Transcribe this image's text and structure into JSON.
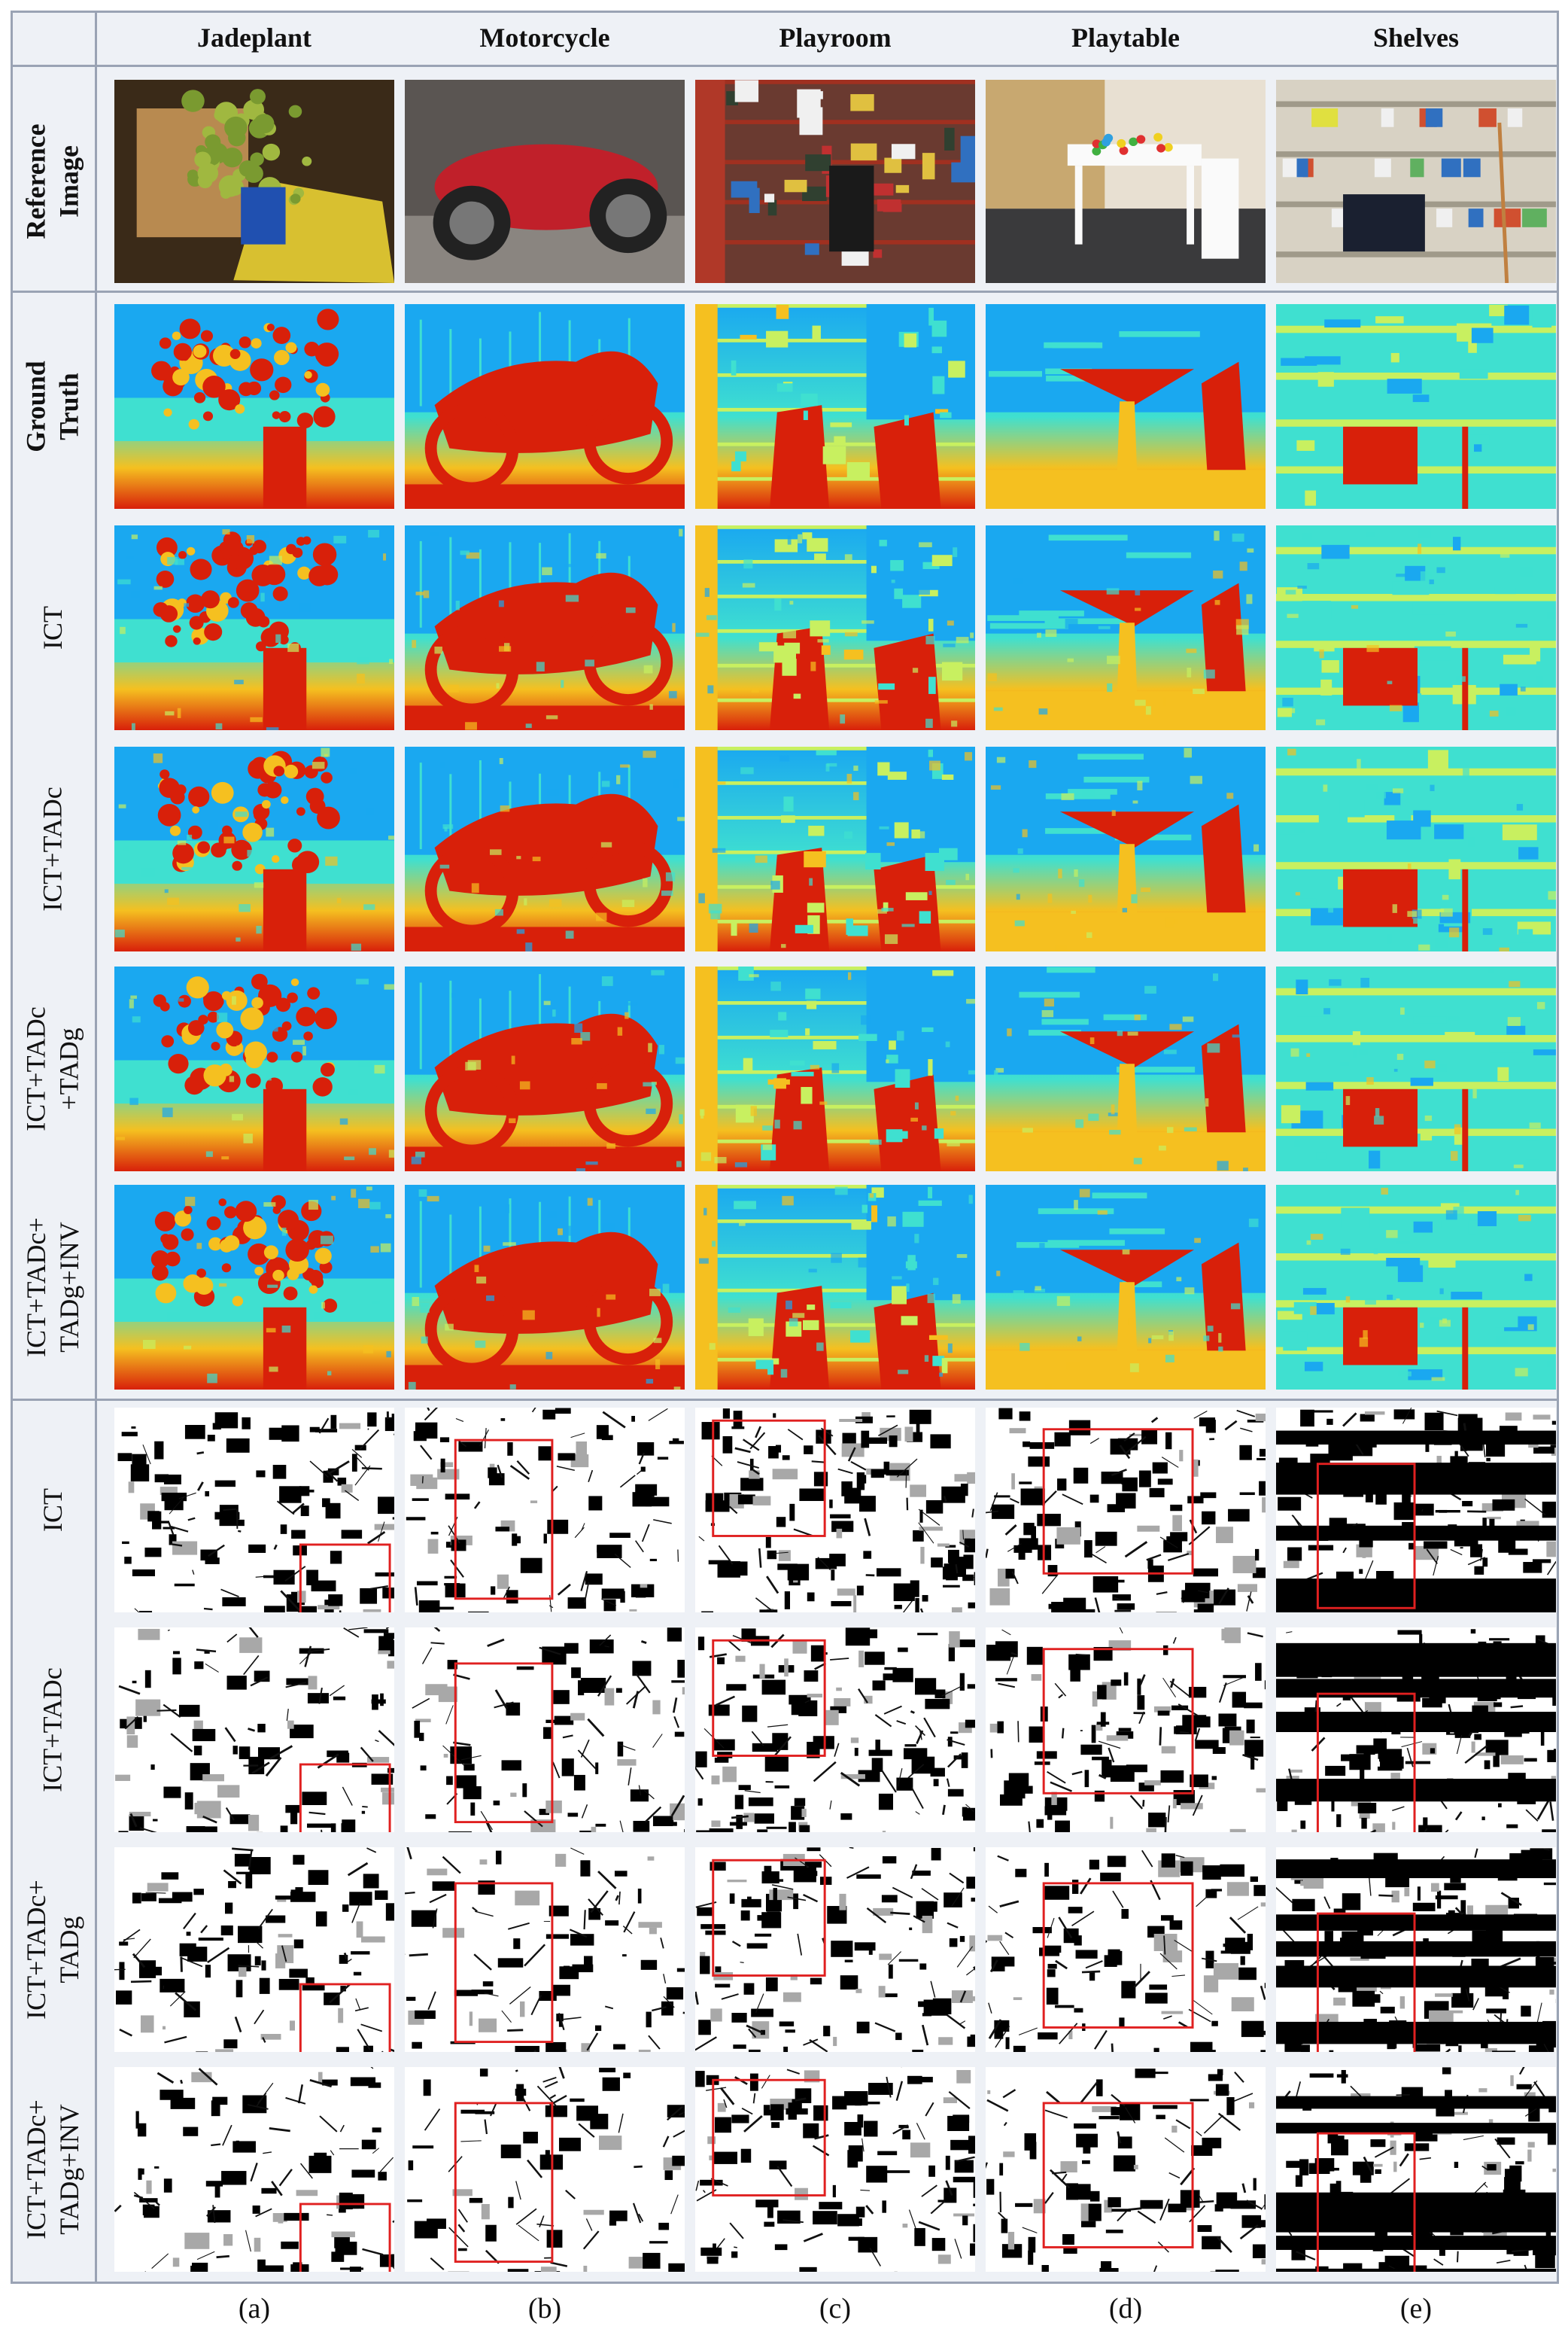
{
  "columns": [
    "Jadeplant",
    "Motorcycle",
    "Playroom",
    "Playtable",
    "Shelves"
  ],
  "rows": [
    {
      "label": "Reference\nImage",
      "kind": "photo",
      "bold": true
    },
    {
      "label": "Ground\nTruth",
      "kind": "depth",
      "bold": true
    },
    {
      "label": "ICT",
      "kind": "depth",
      "bold": false
    },
    {
      "label": "ICT+TADc",
      "kind": "depth",
      "bold": false
    },
    {
      "label": "ICT+TADc\n+TADg",
      "kind": "depth",
      "bold": false
    },
    {
      "label": "ICT+TADc+\nTADg+INV",
      "kind": "depth",
      "bold": false
    },
    {
      "label": "ICT",
      "kind": "error",
      "bold": false
    },
    {
      "label": "ICT+TADc",
      "kind": "error",
      "bold": false
    },
    {
      "label": "ICT+TADc+\nTADg",
      "kind": "error",
      "bold": false
    },
    {
      "label": "ICT+TADc+\nTADg+INV",
      "kind": "error",
      "bold": false
    }
  ],
  "captions": [
    "(a)",
    "(b)",
    "(c)",
    "(d)",
    "(e)"
  ],
  "colors": {
    "highlight_box": "#e02020",
    "grid_line": "#9aa3b4",
    "depth_far": "#1a2bd8",
    "depth_near": "#d8200a"
  }
}
